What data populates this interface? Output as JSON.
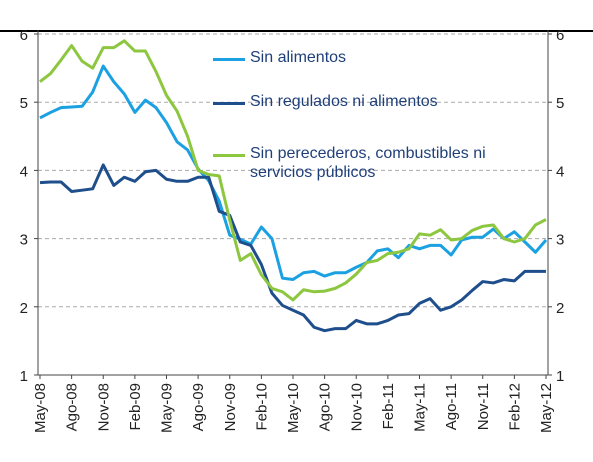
{
  "chart_data": {
    "type": "line",
    "categories": [
      "May-08",
      null,
      null,
      "Ago-08",
      null,
      null,
      "Nov-08",
      null,
      null,
      "Feb-09",
      null,
      null,
      "May-09",
      null,
      null,
      "Ago-09",
      null,
      null,
      "Nov-09",
      null,
      null,
      "Feb-10",
      null,
      null,
      "May-10",
      null,
      null,
      "Ago-10",
      null,
      null,
      "Nov-10",
      null,
      null,
      "Feb-11",
      null,
      null,
      "May-11",
      null,
      null,
      "Ago-11",
      null,
      null,
      "Nov-11",
      null,
      null,
      "Feb-12",
      null,
      null,
      "May-12"
    ],
    "series": [
      {
        "name": "Sin alimentos",
        "color": "#1ba1e2",
        "values": [
          4.77,
          4.85,
          4.92,
          4.93,
          4.94,
          5.15,
          5.53,
          5.3,
          5.12,
          4.85,
          5.03,
          4.92,
          4.7,
          4.42,
          4.3,
          4.02,
          3.85,
          3.55,
          3.05,
          2.99,
          2.92,
          3.17,
          3.0,
          2.42,
          2.4,
          2.5,
          2.52,
          2.45,
          2.5,
          2.5,
          2.58,
          2.65,
          2.82,
          2.85,
          2.72,
          2.9,
          2.85,
          2.9,
          2.9,
          2.76,
          2.98,
          3.02,
          3.02,
          3.14,
          3.0,
          3.1,
          2.95,
          2.8,
          2.98
        ]
      },
      {
        "name": "Sin regulados ni alimentos",
        "color": "#1f4e8c",
        "values": [
          3.82,
          3.83,
          3.83,
          3.69,
          3.71,
          3.73,
          4.08,
          3.78,
          3.9,
          3.84,
          3.98,
          4.0,
          3.87,
          3.84,
          3.84,
          3.9,
          3.9,
          3.4,
          3.34,
          2.95,
          2.9,
          2.62,
          2.2,
          2.02,
          1.95,
          1.88,
          1.7,
          1.65,
          1.68,
          1.68,
          1.8,
          1.75,
          1.75,
          1.8,
          1.88,
          1.9,
          2.05,
          2.12,
          1.95,
          2.0,
          2.1,
          2.24,
          2.37,
          2.35,
          2.4,
          2.38,
          2.52,
          2.52,
          2.52
        ]
      },
      {
        "name": "Sin perecederos, combustibles ni servicios públicos",
        "color": "#8dc63f",
        "values": [
          5.3,
          5.42,
          5.62,
          5.83,
          5.6,
          5.5,
          5.8,
          5.8,
          5.9,
          5.75,
          5.75,
          5.45,
          5.1,
          4.87,
          4.5,
          4.0,
          3.94,
          3.92,
          3.27,
          2.68,
          2.78,
          2.47,
          2.27,
          2.22,
          2.1,
          2.25,
          2.22,
          2.23,
          2.27,
          2.35,
          2.48,
          2.65,
          2.68,
          2.78,
          2.8,
          2.85,
          3.07,
          3.05,
          3.13,
          2.98,
          3.0,
          3.12,
          3.18,
          3.2,
          3.0,
          2.95,
          3.0,
          3.2,
          3.28
        ]
      }
    ],
    "ylim": [
      1,
      6
    ],
    "yticks": [
      1,
      2,
      3,
      4,
      5,
      6
    ],
    "y2lim": [
      1,
      6
    ],
    "y2ticks": [
      1,
      2,
      3,
      4,
      5,
      6
    ],
    "grid": true
  }
}
